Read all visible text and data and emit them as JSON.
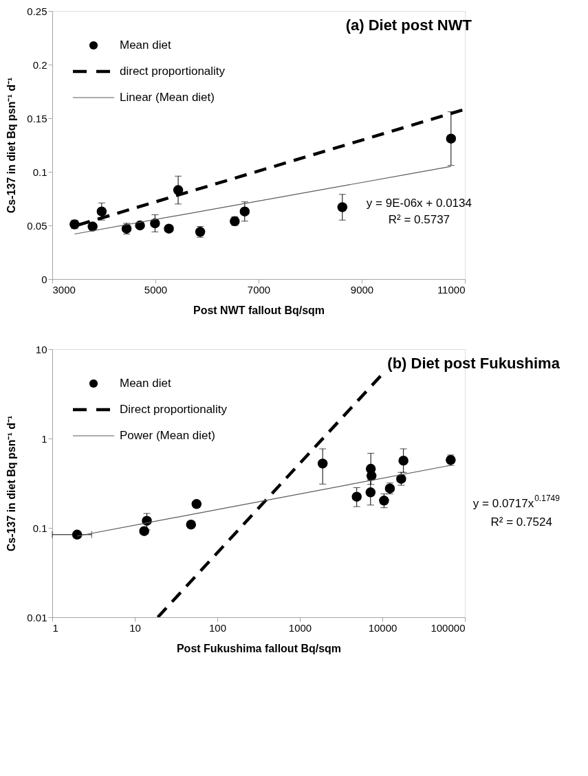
{
  "chart_data": [
    {
      "type": "scatter",
      "title": "(a) Diet post NWT",
      "xlabel": "Post NWT fallout Bq/sqm",
      "ylabel": "Cs-137 in diet Bq psn⁻¹ d⁻¹",
      "xlim": [
        3000,
        11000
      ],
      "xticks": [
        3000,
        5000,
        7000,
        9000,
        11000
      ],
      "ylim": [
        0,
        0.25
      ],
      "yticks": [
        0,
        0.05,
        0.1,
        0.15,
        0.2,
        0.25
      ],
      "grid": false,
      "legend": "top left",
      "annotations": [
        "y = 9E-06x + 0.0134",
        "R² = 0.5737"
      ],
      "series": [
        {
          "name": "Mean diet",
          "marker": "circle",
          "color": "#000000",
          "x": [
            3432,
            3782,
            3958,
            4441,
            4701,
            4992,
            5261,
            5441,
            5868,
            6538,
            6731,
            8624,
            10731
          ],
          "values": [
            0.051,
            0.049,
            0.063,
            0.047,
            0.05,
            0.052,
            0.047,
            0.083,
            0.044,
            0.054,
            0.063,
            0.067,
            0.131
          ],
          "errors": [
            0.004,
            null,
            0.008,
            0.005,
            null,
            0.008,
            null,
            0.013,
            0.005,
            0.004,
            0.009,
            0.012,
            0.025
          ]
        },
        {
          "name": "direct proportionality",
          "type": "line",
          "marker": "none",
          "line_style": "dashed",
          "color": "#000000",
          "x": [
            3500,
            10950
          ],
          "values": [
            0.0504,
            0.1576
          ]
        },
        {
          "name": "Linear (Mean diet)",
          "type": "line",
          "marker": "none",
          "line_style": "solid",
          "color": "#595959",
          "x": [
            3432,
            10731
          ],
          "values": [
            0.042,
            0.105
          ]
        }
      ]
    },
    {
      "type": "scatter",
      "title": "(b) Diet post Fukushima",
      "xlabel": "Post Fukushima fallout Bq/sqm",
      "ylabel": "Cs-137 in diet Bq psn⁻¹ d⁻¹",
      "log": "xy",
      "xlim": [
        1,
        100000
      ],
      "xticks": [
        1,
        10,
        100,
        1000,
        10000,
        100000
      ],
      "ylim": [
        0.01,
        10
      ],
      "yticks": [
        0.01,
        0.1,
        1,
        10
      ],
      "grid": false,
      "legend": "top left",
      "annotations": [
        "y = 0.0717x$^{0.1749}$",
        "R² = 0.7524"
      ],
      "series": [
        {
          "name": "Mean diet",
          "marker": "circle",
          "color": "#000000",
          "x": [
            2,
            13,
            14,
            48,
            56,
            1890,
            4890,
            7240,
            7380,
            7190,
            10470,
            12330,
            16900,
            18000,
            67300
          ],
          "values": [
            0.084,
            0.092,
            0.12,
            0.109,
            0.185,
            0.525,
            0.223,
            0.458,
            0.382,
            0.25,
            0.202,
            0.276,
            0.354,
            0.566,
            0.575
          ],
          "errors": [
            null,
            null,
            [
              0.095,
              0.145
            ],
            null,
            null,
            [
              0.309,
              0.767
            ],
            [
              0.173,
              0.282
            ],
            [
              0.307,
              0.684
            ],
            null,
            [
              0.18,
              0.344
            ],
            [
              0.168,
              0.24
            ],
            [
              0.24,
              0.318
            ],
            [
              0.3,
              0.418
            ],
            [
              0.418,
              0.767
            ],
            [
              0.5,
              0.655
            ]
          ],
          "xerrors": [
            1,
            null,
            null,
            null,
            null,
            null,
            null,
            null,
            null,
            null,
            null,
            null,
            null,
            null,
            null
          ]
        },
        {
          "name": "Direct proportionality",
          "type": "line",
          "marker": "none",
          "line_style": "dashed",
          "color": "#000000",
          "x": [
            19,
            9500
          ],
          "values": [
            0.01,
            5.0
          ]
        },
        {
          "name": "Power (Mean diet)",
          "type": "line",
          "marker": "none",
          "line_style": "solid",
          "color": "#595959",
          "x": [
            2,
            67300
          ],
          "values": [
            0.0809,
            0.501
          ]
        }
      ]
    }
  ]
}
